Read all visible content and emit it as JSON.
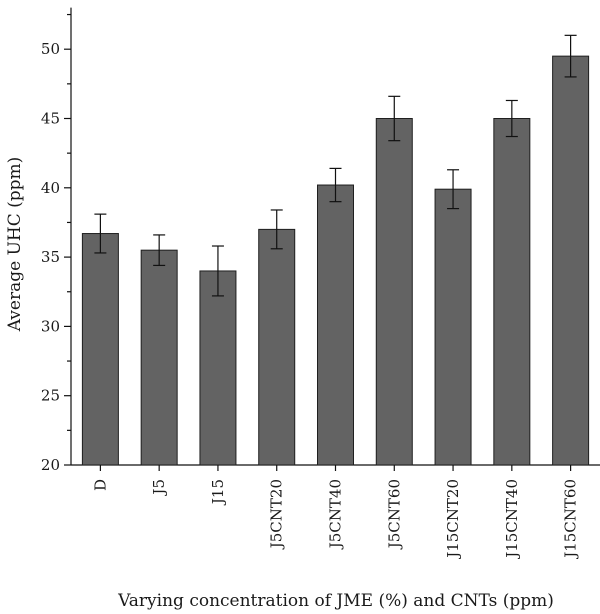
{
  "chart_data": {
    "type": "bar",
    "title": "",
    "xlabel": "Varying concentration of JME (%) and CNTs (ppm)",
    "ylabel": "Average UHC (ppm)",
    "ylim": [
      20,
      53
    ],
    "yticks": [
      20,
      25,
      30,
      35,
      40,
      45,
      50
    ],
    "categories": [
      "D",
      "J5",
      "J15",
      "J5CNT20",
      "J5CNT40",
      "J5CNT60",
      "J15CNT20",
      "J15CNT40",
      "J15CNT60"
    ],
    "values": [
      36.7,
      35.5,
      34.0,
      37.0,
      40.2,
      45.0,
      39.9,
      45.0,
      49.5
    ],
    "errors": [
      1.4,
      1.1,
      1.8,
      1.4,
      1.2,
      1.6,
      1.4,
      1.3,
      1.5
    ],
    "grid": false,
    "legend": "none",
    "bar_color": "#636363"
  }
}
